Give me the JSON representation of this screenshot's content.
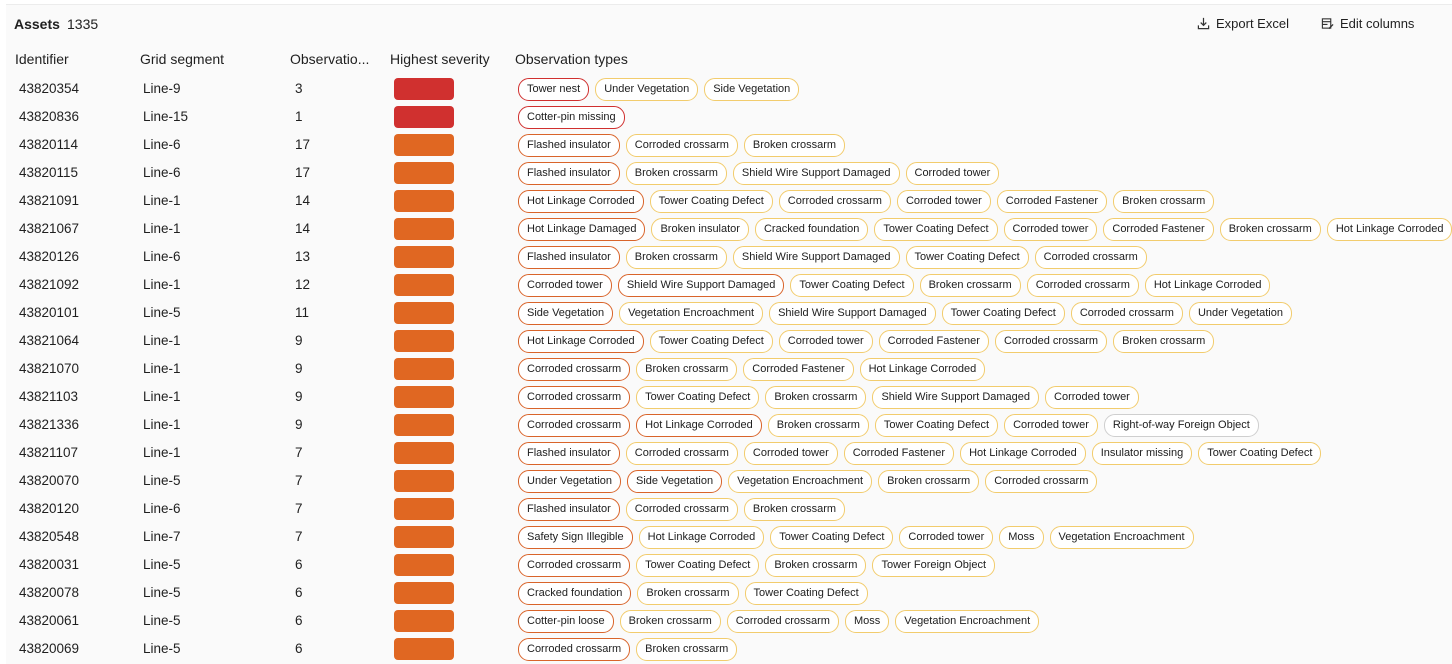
{
  "header": {
    "title": "Assets",
    "count": "1335",
    "export_label": "Export Excel",
    "edit_label": "Edit columns"
  },
  "columns": [
    "Identifier",
    "Grid segment",
    "Observatio...",
    "Highest severity",
    "Observation types"
  ],
  "colors": {
    "critical": "#d0302f",
    "high": "#e06722",
    "chip_critical": "#d0302f",
    "chip_high": "#d9642a",
    "chip_medium": "#f2cc6d",
    "chip_low": "#cfcfcf"
  },
  "rows": [
    {
      "id": "43820354",
      "grid": "Line-9",
      "obs": "3",
      "sev": "critical",
      "types": [
        [
          "Tower nest",
          "critical"
        ],
        [
          "Under Vegetation",
          "medium"
        ],
        [
          "Side Vegetation",
          "medium"
        ]
      ]
    },
    {
      "id": "43820836",
      "grid": "Line-15",
      "obs": "1",
      "sev": "critical",
      "types": [
        [
          "Cotter-pin missing",
          "critical"
        ]
      ]
    },
    {
      "id": "43820114",
      "grid": "Line-6",
      "obs": "17",
      "sev": "high",
      "types": [
        [
          "Flashed insulator",
          "high"
        ],
        [
          "Corroded crossarm",
          "medium"
        ],
        [
          "Broken crossarm",
          "medium"
        ]
      ]
    },
    {
      "id": "43820115",
      "grid": "Line-6",
      "obs": "17",
      "sev": "high",
      "types": [
        [
          "Flashed insulator",
          "high"
        ],
        [
          "Broken crossarm",
          "medium"
        ],
        [
          "Shield Wire Support Damaged",
          "medium"
        ],
        [
          "Corroded tower",
          "medium"
        ]
      ]
    },
    {
      "id": "43821091",
      "grid": "Line-1",
      "obs": "14",
      "sev": "high",
      "types": [
        [
          "Hot Linkage Corroded",
          "high"
        ],
        [
          "Tower Coating Defect",
          "medium"
        ],
        [
          "Corroded crossarm",
          "medium"
        ],
        [
          "Corroded tower",
          "medium"
        ],
        [
          "Corroded Fastener",
          "medium"
        ],
        [
          "Broken crossarm",
          "medium"
        ]
      ]
    },
    {
      "id": "43821067",
      "grid": "Line-1",
      "obs": "14",
      "sev": "high",
      "types": [
        [
          "Hot Linkage Damaged",
          "high"
        ],
        [
          "Broken insulator",
          "medium"
        ],
        [
          "Cracked foundation",
          "medium"
        ],
        [
          "Tower Coating Defect",
          "medium"
        ],
        [
          "Corroded tower",
          "medium"
        ],
        [
          "Corroded Fastener",
          "medium"
        ],
        [
          "Broken crossarm",
          "medium"
        ],
        [
          "Hot Linkage Corroded",
          "medium"
        ]
      ]
    },
    {
      "id": "43820126",
      "grid": "Line-6",
      "obs": "13",
      "sev": "high",
      "types": [
        [
          "Flashed insulator",
          "high"
        ],
        [
          "Broken crossarm",
          "medium"
        ],
        [
          "Shield Wire Support Damaged",
          "medium"
        ],
        [
          "Tower Coating Defect",
          "medium"
        ],
        [
          "Corroded crossarm",
          "medium"
        ]
      ]
    },
    {
      "id": "43821092",
      "grid": "Line-1",
      "obs": "12",
      "sev": "high",
      "types": [
        [
          "Corroded tower",
          "high"
        ],
        [
          "Shield Wire Support Damaged",
          "high"
        ],
        [
          "Tower Coating Defect",
          "medium"
        ],
        [
          "Broken crossarm",
          "medium"
        ],
        [
          "Corroded crossarm",
          "medium"
        ],
        [
          "Hot Linkage Corroded",
          "medium"
        ]
      ]
    },
    {
      "id": "43820101",
      "grid": "Line-5",
      "obs": "11",
      "sev": "high",
      "types": [
        [
          "Side Vegetation",
          "high"
        ],
        [
          "Vegetation Encroachment",
          "medium"
        ],
        [
          "Shield Wire Support Damaged",
          "medium"
        ],
        [
          "Tower Coating Defect",
          "medium"
        ],
        [
          "Corroded crossarm",
          "medium"
        ],
        [
          "Under Vegetation",
          "medium"
        ]
      ]
    },
    {
      "id": "43821064",
      "grid": "Line-1",
      "obs": "9",
      "sev": "high",
      "types": [
        [
          "Hot Linkage Corroded",
          "high"
        ],
        [
          "Tower Coating Defect",
          "medium"
        ],
        [
          "Corroded tower",
          "medium"
        ],
        [
          "Corroded Fastener",
          "medium"
        ],
        [
          "Corroded crossarm",
          "medium"
        ],
        [
          "Broken crossarm",
          "medium"
        ]
      ]
    },
    {
      "id": "43821070",
      "grid": "Line-1",
      "obs": "9",
      "sev": "high",
      "types": [
        [
          "Corroded crossarm",
          "high"
        ],
        [
          "Broken crossarm",
          "medium"
        ],
        [
          "Corroded Fastener",
          "medium"
        ],
        [
          "Hot Linkage Corroded",
          "medium"
        ]
      ]
    },
    {
      "id": "43821103",
      "grid": "Line-1",
      "obs": "9",
      "sev": "high",
      "types": [
        [
          "Corroded crossarm",
          "high"
        ],
        [
          "Tower Coating Defect",
          "medium"
        ],
        [
          "Broken crossarm",
          "medium"
        ],
        [
          "Shield Wire Support Damaged",
          "medium"
        ],
        [
          "Corroded tower",
          "medium"
        ]
      ]
    },
    {
      "id": "43821336",
      "grid": "Line-1",
      "obs": "9",
      "sev": "high",
      "types": [
        [
          "Corroded crossarm",
          "high"
        ],
        [
          "Hot Linkage Corroded",
          "high"
        ],
        [
          "Broken crossarm",
          "medium"
        ],
        [
          "Tower Coating Defect",
          "medium"
        ],
        [
          "Corroded tower",
          "medium"
        ],
        [
          "Right-of-way Foreign Object",
          "low"
        ]
      ]
    },
    {
      "id": "43821107",
      "grid": "Line-1",
      "obs": "7",
      "sev": "high",
      "types": [
        [
          "Flashed insulator",
          "high"
        ],
        [
          "Corroded crossarm",
          "medium"
        ],
        [
          "Corroded tower",
          "medium"
        ],
        [
          "Corroded Fastener",
          "medium"
        ],
        [
          "Hot Linkage Corroded",
          "medium"
        ],
        [
          "Insulator missing",
          "medium"
        ],
        [
          "Tower Coating Defect",
          "medium"
        ]
      ]
    },
    {
      "id": "43820070",
      "grid": "Line-5",
      "obs": "7",
      "sev": "high",
      "types": [
        [
          "Under Vegetation",
          "high"
        ],
        [
          "Side Vegetation",
          "high"
        ],
        [
          "Vegetation Encroachment",
          "medium"
        ],
        [
          "Broken crossarm",
          "medium"
        ],
        [
          "Corroded crossarm",
          "medium"
        ]
      ]
    },
    {
      "id": "43820120",
      "grid": "Line-6",
      "obs": "7",
      "sev": "high",
      "types": [
        [
          "Flashed insulator",
          "high"
        ],
        [
          "Corroded crossarm",
          "medium"
        ],
        [
          "Broken crossarm",
          "medium"
        ]
      ]
    },
    {
      "id": "43820548",
      "grid": "Line-7",
      "obs": "7",
      "sev": "high",
      "types": [
        [
          "Safety Sign Illegible",
          "high"
        ],
        [
          "Hot Linkage Corroded",
          "medium"
        ],
        [
          "Tower Coating Defect",
          "medium"
        ],
        [
          "Corroded tower",
          "medium"
        ],
        [
          "Moss",
          "medium"
        ],
        [
          "Vegetation Encroachment",
          "medium"
        ]
      ]
    },
    {
      "id": "43820031",
      "grid": "Line-5",
      "obs": "6",
      "sev": "high",
      "types": [
        [
          "Corroded crossarm",
          "high"
        ],
        [
          "Tower Coating Defect",
          "medium"
        ],
        [
          "Broken crossarm",
          "medium"
        ],
        [
          "Tower Foreign Object",
          "medium"
        ]
      ]
    },
    {
      "id": "43820078",
      "grid": "Line-5",
      "obs": "6",
      "sev": "high",
      "types": [
        [
          "Cracked foundation",
          "high"
        ],
        [
          "Broken crossarm",
          "medium"
        ],
        [
          "Tower Coating Defect",
          "medium"
        ]
      ]
    },
    {
      "id": "43820061",
      "grid": "Line-5",
      "obs": "6",
      "sev": "high",
      "types": [
        [
          "Cotter-pin loose",
          "high"
        ],
        [
          "Broken crossarm",
          "medium"
        ],
        [
          "Corroded crossarm",
          "medium"
        ],
        [
          "Moss",
          "medium"
        ],
        [
          "Vegetation Encroachment",
          "medium"
        ]
      ]
    },
    {
      "id": "43820069",
      "grid": "Line-5",
      "obs": "6",
      "sev": "high",
      "types": [
        [
          "Corroded crossarm",
          "high"
        ],
        [
          "Broken crossarm",
          "medium"
        ]
      ]
    }
  ]
}
